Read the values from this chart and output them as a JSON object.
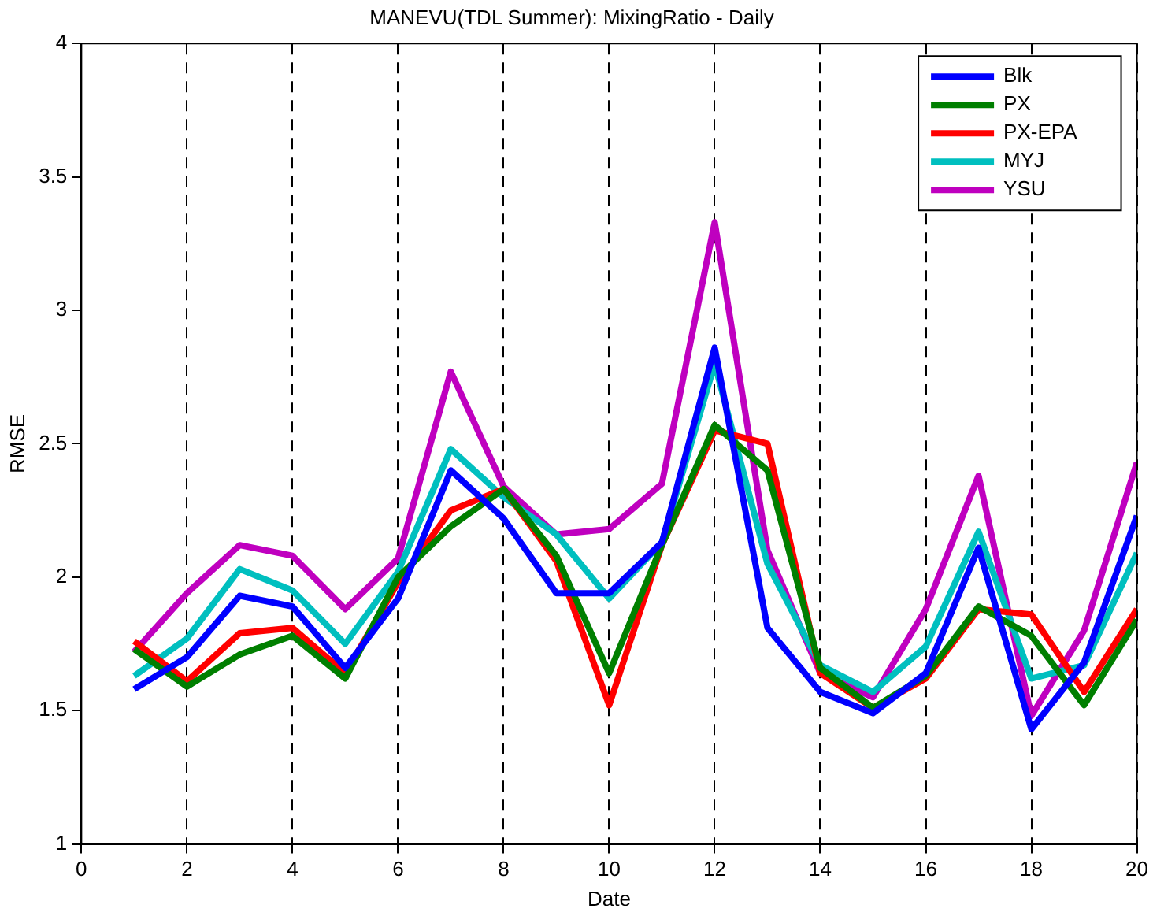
{
  "chart_data": {
    "type": "line",
    "title": "MANEVU(TDL Summer): MixingRatio - Daily",
    "xlabel": "Date",
    "ylabel": "RMSE",
    "x": [
      1,
      2,
      3,
      4,
      5,
      6,
      7,
      8,
      9,
      10,
      11,
      12,
      13,
      14,
      15,
      16,
      17,
      18,
      19,
      20
    ],
    "series": [
      {
        "name": "Blk",
        "color": "#0000ff",
        "values": [
          1.58,
          1.7,
          1.93,
          1.89,
          1.66,
          1.92,
          2.4,
          2.22,
          1.94,
          1.94,
          2.13,
          2.86,
          1.81,
          1.57,
          1.49,
          1.64,
          2.11,
          1.43,
          1.68,
          2.23
        ]
      },
      {
        "name": "PX",
        "color": "#007f00",
        "values": [
          1.73,
          1.59,
          1.71,
          1.78,
          1.62,
          2.0,
          2.19,
          2.33,
          2.08,
          1.64,
          2.12,
          2.57,
          2.4,
          1.66,
          1.51,
          1.63,
          1.89,
          1.78,
          1.52,
          1.84
        ]
      },
      {
        "name": "PX-EPA",
        "color": "#ff0000",
        "values": [
          1.76,
          1.61,
          1.79,
          1.81,
          1.64,
          1.98,
          2.25,
          2.33,
          2.06,
          1.52,
          2.12,
          2.55,
          2.5,
          1.64,
          1.51,
          1.62,
          1.88,
          1.86,
          1.57,
          1.88
        ]
      },
      {
        "name": "MYJ",
        "color": "#00bfbf",
        "values": [
          1.63,
          1.77,
          2.03,
          1.95,
          1.75,
          2.02,
          2.48,
          2.3,
          2.16,
          1.92,
          2.13,
          2.8,
          2.05,
          1.67,
          1.57,
          1.74,
          2.17,
          1.62,
          1.67,
          2.09
        ]
      },
      {
        "name": "YSU",
        "color": "#bf00bf",
        "values": [
          1.72,
          1.94,
          2.12,
          2.08,
          1.88,
          2.07,
          2.77,
          2.34,
          2.16,
          2.18,
          2.35,
          3.33,
          2.1,
          1.64,
          1.55,
          1.88,
          2.38,
          1.48,
          1.8,
          2.43
        ]
      }
    ],
    "xlim": [
      0,
      20
    ],
    "xticks": [
      0,
      2,
      4,
      6,
      8,
      10,
      12,
      14,
      16,
      18,
      20
    ],
    "ylim": [
      1,
      4
    ],
    "yticks": [
      1,
      1.5,
      2,
      2.5,
      3,
      3.5,
      4
    ],
    "grid": "x",
    "legend": "top right",
    "marker": "none",
    "line_style": "solid"
  }
}
